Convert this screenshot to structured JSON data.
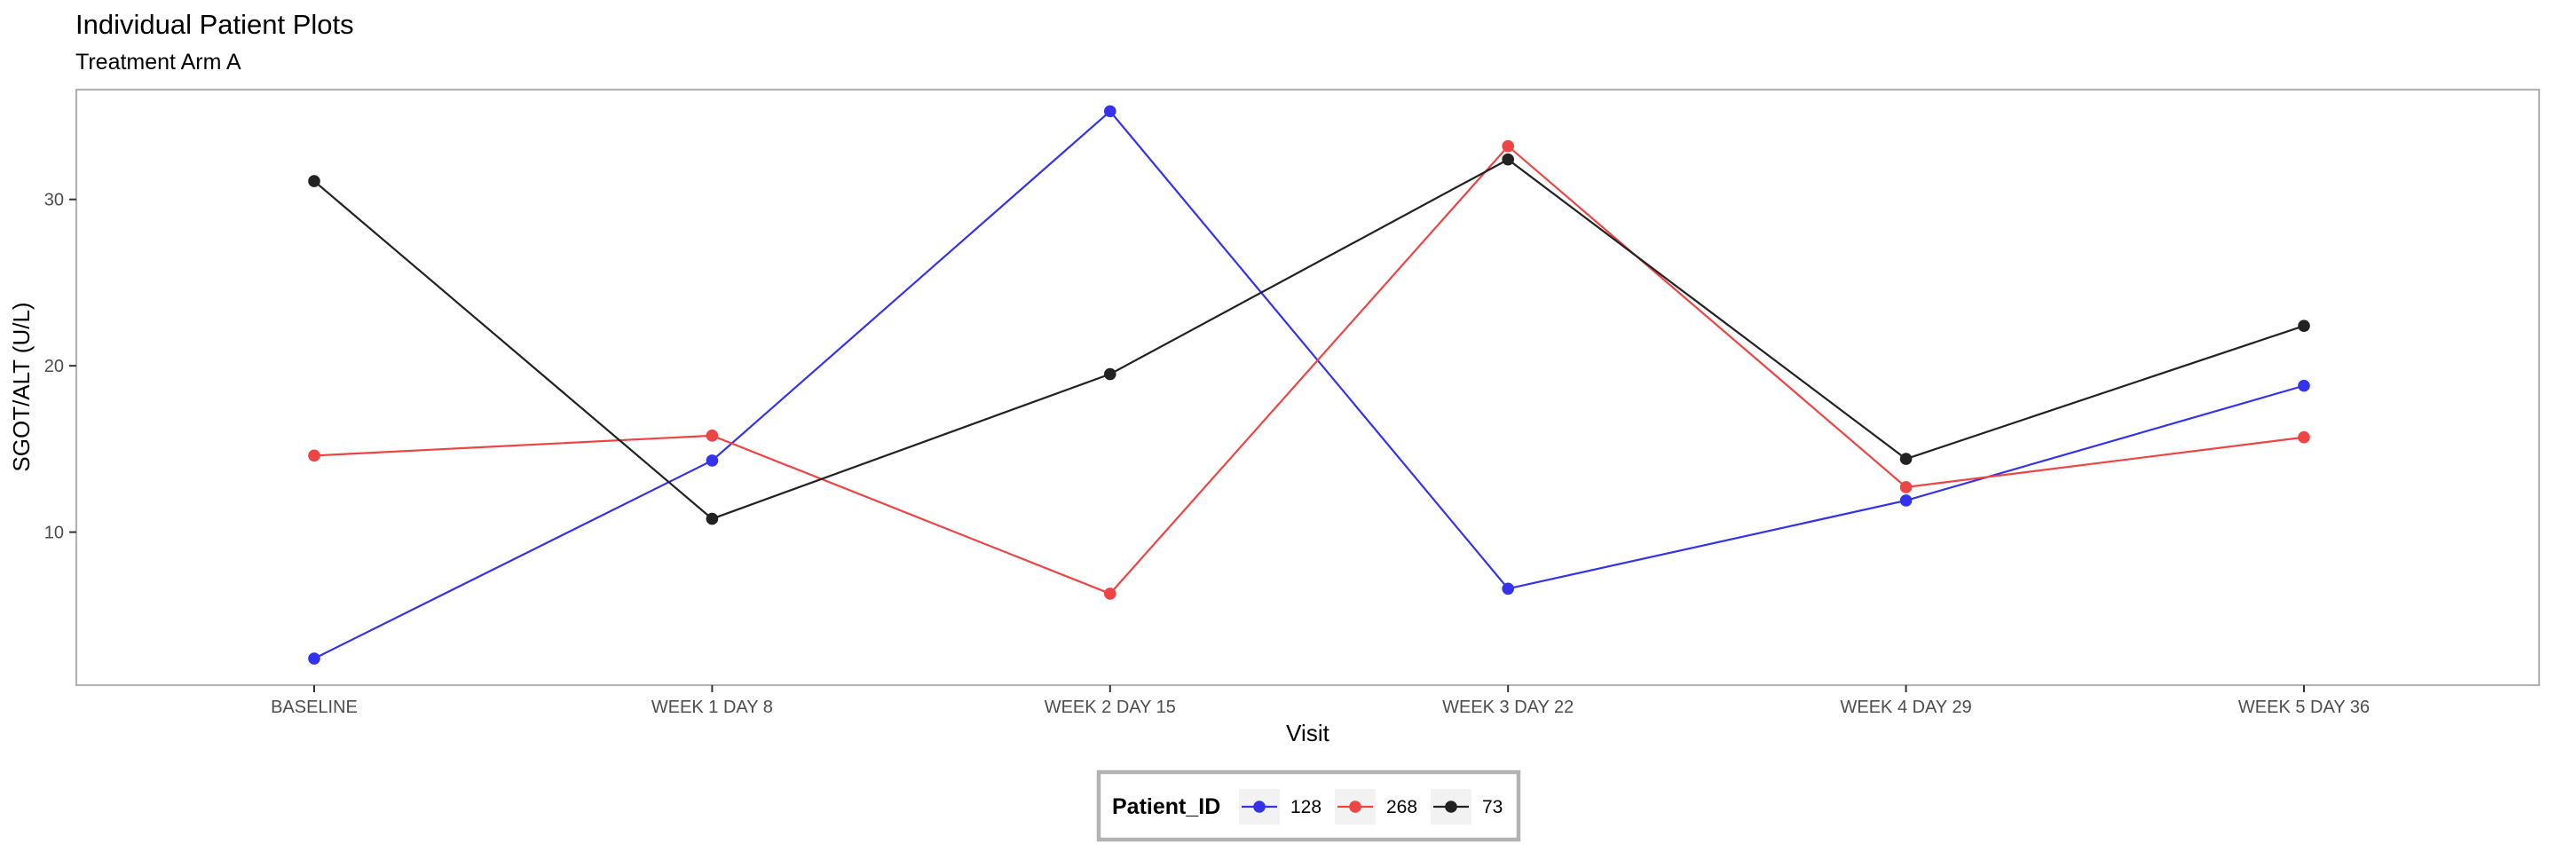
{
  "chart_data": {
    "type": "line",
    "title": "Individual Patient Plots",
    "subtitle": "Treatment Arm A",
    "xlabel": "Visit",
    "ylabel": "SGOT/ALT (U/L)",
    "categories": [
      "BASELINE",
      "WEEK 1 DAY 8",
      "WEEK 2 DAY 15",
      "WEEK 3 DAY 22",
      "WEEK 4 DAY 29",
      "WEEK 5 DAY 36"
    ],
    "yticks": [
      10,
      20,
      30
    ],
    "ylim": [
      0.8,
      36.6
    ],
    "grid": false,
    "legend": {
      "title": "Patient_ID",
      "position": "bottom"
    },
    "series": [
      {
        "name": "128",
        "color": "#3333ee",
        "values": [
          2.4,
          14.3,
          35.3,
          6.6,
          11.9,
          18.8
        ]
      },
      {
        "name": "268",
        "color": "#ee4444",
        "values": [
          14.6,
          15.8,
          6.3,
          33.2,
          12.7,
          15.7
        ]
      },
      {
        "name": "73",
        "color": "#222222",
        "values": [
          31.1,
          10.8,
          19.5,
          32.4,
          14.4,
          22.4
        ]
      }
    ]
  }
}
